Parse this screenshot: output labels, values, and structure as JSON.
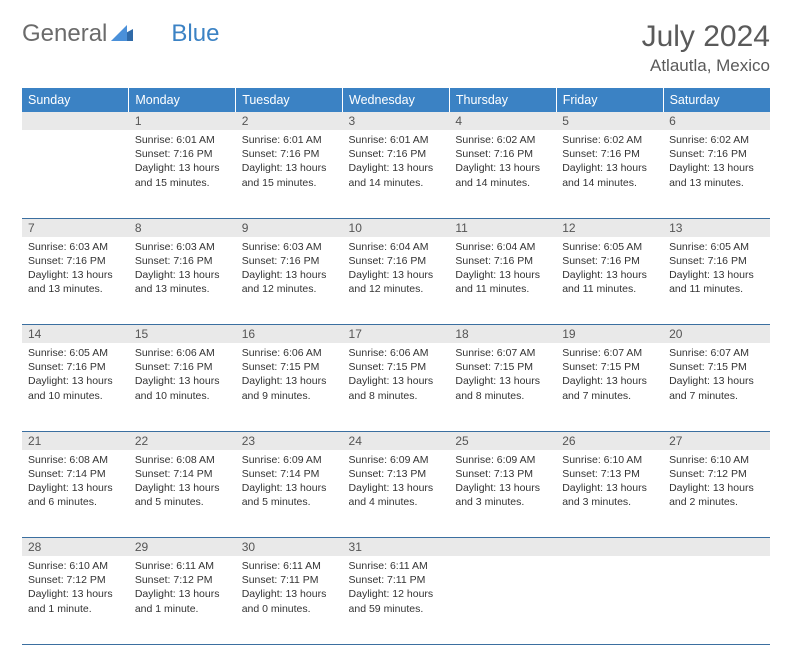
{
  "brand": {
    "part1": "General",
    "part2": "Blue"
  },
  "title": "July 2024",
  "location": "Atlautla, Mexico",
  "colors": {
    "header_bg": "#3b82c4",
    "daynum_bg": "#e9e9e9",
    "rule": "#3b6fa0"
  },
  "weekdays": [
    "Sunday",
    "Monday",
    "Tuesday",
    "Wednesday",
    "Thursday",
    "Friday",
    "Saturday"
  ],
  "weeks": [
    [
      null,
      {
        "n": "1",
        "sr": "Sunrise: 6:01 AM",
        "ss": "Sunset: 7:16 PM",
        "dl": "Daylight: 13 hours and 15 minutes."
      },
      {
        "n": "2",
        "sr": "Sunrise: 6:01 AM",
        "ss": "Sunset: 7:16 PM",
        "dl": "Daylight: 13 hours and 15 minutes."
      },
      {
        "n": "3",
        "sr": "Sunrise: 6:01 AM",
        "ss": "Sunset: 7:16 PM",
        "dl": "Daylight: 13 hours and 14 minutes."
      },
      {
        "n": "4",
        "sr": "Sunrise: 6:02 AM",
        "ss": "Sunset: 7:16 PM",
        "dl": "Daylight: 13 hours and 14 minutes."
      },
      {
        "n": "5",
        "sr": "Sunrise: 6:02 AM",
        "ss": "Sunset: 7:16 PM",
        "dl": "Daylight: 13 hours and 14 minutes."
      },
      {
        "n": "6",
        "sr": "Sunrise: 6:02 AM",
        "ss": "Sunset: 7:16 PM",
        "dl": "Daylight: 13 hours and 13 minutes."
      }
    ],
    [
      {
        "n": "7",
        "sr": "Sunrise: 6:03 AM",
        "ss": "Sunset: 7:16 PM",
        "dl": "Daylight: 13 hours and 13 minutes."
      },
      {
        "n": "8",
        "sr": "Sunrise: 6:03 AM",
        "ss": "Sunset: 7:16 PM",
        "dl": "Daylight: 13 hours and 13 minutes."
      },
      {
        "n": "9",
        "sr": "Sunrise: 6:03 AM",
        "ss": "Sunset: 7:16 PM",
        "dl": "Daylight: 13 hours and 12 minutes."
      },
      {
        "n": "10",
        "sr": "Sunrise: 6:04 AM",
        "ss": "Sunset: 7:16 PM",
        "dl": "Daylight: 13 hours and 12 minutes."
      },
      {
        "n": "11",
        "sr": "Sunrise: 6:04 AM",
        "ss": "Sunset: 7:16 PM",
        "dl": "Daylight: 13 hours and 11 minutes."
      },
      {
        "n": "12",
        "sr": "Sunrise: 6:05 AM",
        "ss": "Sunset: 7:16 PM",
        "dl": "Daylight: 13 hours and 11 minutes."
      },
      {
        "n": "13",
        "sr": "Sunrise: 6:05 AM",
        "ss": "Sunset: 7:16 PM",
        "dl": "Daylight: 13 hours and 11 minutes."
      }
    ],
    [
      {
        "n": "14",
        "sr": "Sunrise: 6:05 AM",
        "ss": "Sunset: 7:16 PM",
        "dl": "Daylight: 13 hours and 10 minutes."
      },
      {
        "n": "15",
        "sr": "Sunrise: 6:06 AM",
        "ss": "Sunset: 7:16 PM",
        "dl": "Daylight: 13 hours and 10 minutes."
      },
      {
        "n": "16",
        "sr": "Sunrise: 6:06 AM",
        "ss": "Sunset: 7:15 PM",
        "dl": "Daylight: 13 hours and 9 minutes."
      },
      {
        "n": "17",
        "sr": "Sunrise: 6:06 AM",
        "ss": "Sunset: 7:15 PM",
        "dl": "Daylight: 13 hours and 8 minutes."
      },
      {
        "n": "18",
        "sr": "Sunrise: 6:07 AM",
        "ss": "Sunset: 7:15 PM",
        "dl": "Daylight: 13 hours and 8 minutes."
      },
      {
        "n": "19",
        "sr": "Sunrise: 6:07 AM",
        "ss": "Sunset: 7:15 PM",
        "dl": "Daylight: 13 hours and 7 minutes."
      },
      {
        "n": "20",
        "sr": "Sunrise: 6:07 AM",
        "ss": "Sunset: 7:15 PM",
        "dl": "Daylight: 13 hours and 7 minutes."
      }
    ],
    [
      {
        "n": "21",
        "sr": "Sunrise: 6:08 AM",
        "ss": "Sunset: 7:14 PM",
        "dl": "Daylight: 13 hours and 6 minutes."
      },
      {
        "n": "22",
        "sr": "Sunrise: 6:08 AM",
        "ss": "Sunset: 7:14 PM",
        "dl": "Daylight: 13 hours and 5 minutes."
      },
      {
        "n": "23",
        "sr": "Sunrise: 6:09 AM",
        "ss": "Sunset: 7:14 PM",
        "dl": "Daylight: 13 hours and 5 minutes."
      },
      {
        "n": "24",
        "sr": "Sunrise: 6:09 AM",
        "ss": "Sunset: 7:13 PM",
        "dl": "Daylight: 13 hours and 4 minutes."
      },
      {
        "n": "25",
        "sr": "Sunrise: 6:09 AM",
        "ss": "Sunset: 7:13 PM",
        "dl": "Daylight: 13 hours and 3 minutes."
      },
      {
        "n": "26",
        "sr": "Sunrise: 6:10 AM",
        "ss": "Sunset: 7:13 PM",
        "dl": "Daylight: 13 hours and 3 minutes."
      },
      {
        "n": "27",
        "sr": "Sunrise: 6:10 AM",
        "ss": "Sunset: 7:12 PM",
        "dl": "Daylight: 13 hours and 2 minutes."
      }
    ],
    [
      {
        "n": "28",
        "sr": "Sunrise: 6:10 AM",
        "ss": "Sunset: 7:12 PM",
        "dl": "Daylight: 13 hours and 1 minute."
      },
      {
        "n": "29",
        "sr": "Sunrise: 6:11 AM",
        "ss": "Sunset: 7:12 PM",
        "dl": "Daylight: 13 hours and 1 minute."
      },
      {
        "n": "30",
        "sr": "Sunrise: 6:11 AM",
        "ss": "Sunset: 7:11 PM",
        "dl": "Daylight: 13 hours and 0 minutes."
      },
      {
        "n": "31",
        "sr": "Sunrise: 6:11 AM",
        "ss": "Sunset: 7:11 PM",
        "dl": "Daylight: 12 hours and 59 minutes."
      },
      null,
      null,
      null
    ]
  ]
}
